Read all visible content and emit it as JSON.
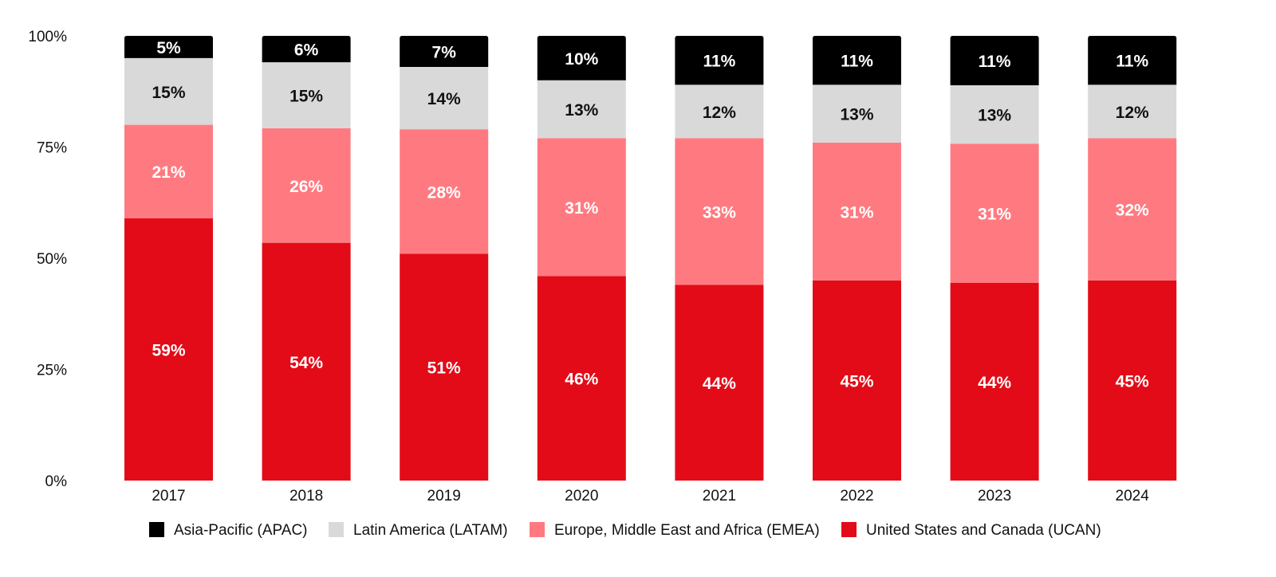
{
  "chart_data": {
    "type": "bar",
    "stacked": true,
    "categories": [
      "2017",
      "2018",
      "2019",
      "2020",
      "2021",
      "2022",
      "2023",
      "2024"
    ],
    "series": [
      {
        "name": "United States and Canada (UCAN)",
        "color": "#e30b17",
        "label_color": "#ffffff",
        "values": [
          59,
          54,
          51,
          46,
          44,
          45,
          44,
          45
        ],
        "labels": [
          "59%",
          "54%",
          "51%",
          "46%",
          "44%",
          "45%",
          "44%",
          "45%"
        ]
      },
      {
        "name": "Europe, Middle East and Africa (EMEA)",
        "color": "#ff7a80",
        "label_color": "#ffffff",
        "values": [
          21,
          26,
          28,
          31,
          33,
          31,
          31,
          32
        ],
        "labels": [
          "21%",
          "26%",
          "28%",
          "31%",
          "33%",
          "31%",
          "31%",
          "32%"
        ]
      },
      {
        "name": "Latin America (LATAM)",
        "color": "#d9d9d9",
        "label_color": "#111111",
        "values": [
          15,
          15,
          14,
          13,
          12,
          13,
          13,
          12
        ],
        "labels": [
          "15%",
          "15%",
          "14%",
          "13%",
          "12%",
          "13%",
          "13%",
          "12%"
        ]
      },
      {
        "name": "Asia-Pacific (APAC)",
        "color": "#000000",
        "label_color": "#ffffff",
        "values": [
          5,
          6,
          7,
          10,
          11,
          11,
          11,
          11
        ],
        "labels": [
          "5%",
          "6%",
          "7%",
          "10%",
          "11%",
          "11%",
          "11%",
          "11%"
        ]
      }
    ],
    "y_ticks": [
      {
        "value": 0,
        "label": "0%"
      },
      {
        "value": 25,
        "label": "25%"
      },
      {
        "value": 50,
        "label": "50%"
      },
      {
        "value": 75,
        "label": "75%"
      },
      {
        "value": 100,
        "label": "100%"
      }
    ],
    "ylim": [
      0,
      100
    ],
    "grid": false,
    "legend_order": [
      "Asia-Pacific (APAC)",
      "Latin America (LATAM)",
      "Europe, Middle East and Africa (EMEA)",
      "United States and Canada (UCAN)"
    ],
    "legend_position": "bottom",
    "title": "",
    "xlabel": "",
    "ylabel": ""
  }
}
